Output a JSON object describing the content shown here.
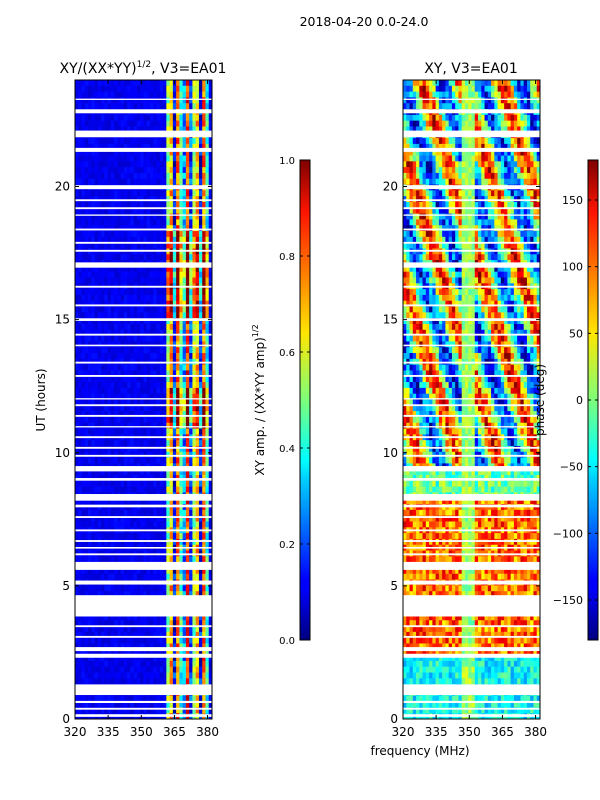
{
  "figure": {
    "suptitle": "2018-04-20 0.0-24.0",
    "shared_xlabel": "frequency (MHz)"
  },
  "chart_data": [
    {
      "type": "heatmap",
      "id": "left",
      "title_main": "XY/(XX*YY)",
      "title_sup": "1/2",
      "title_tail": ", V3=EA01",
      "ylabel": "UT (hours)",
      "xlabel": "",
      "xlim": [
        320,
        382
      ],
      "ylim": [
        0,
        24
      ],
      "xticks": [
        320,
        335,
        350,
        365,
        380
      ],
      "yticks": [
        0,
        5,
        10,
        15,
        20
      ],
      "colorbar": {
        "label_main": "XY amp. / (XX*YY amp)",
        "label_sup": "1/2",
        "vmin": 0.0,
        "vmax": 1.0,
        "ticks": [
          "0.0",
          "0.2",
          "0.4",
          "0.6",
          "0.8",
          "1.0"
        ],
        "tick_values": [
          0.0,
          0.2,
          0.4,
          0.6,
          0.8,
          1.0
        ],
        "colormap": "jet"
      },
      "gaps_hours": [
        [
          0.08,
          0.18
        ],
        [
          0.35,
          0.42
        ],
        [
          0.6,
          0.68
        ],
        [
          0.9,
          1.3
        ],
        [
          2.3,
          2.45
        ],
        [
          2.55,
          2.7
        ],
        [
          3.05,
          3.12
        ],
        [
          3.45,
          3.52
        ],
        [
          3.85,
          4.65
        ],
        [
          5.05,
          5.2
        ],
        [
          5.6,
          5.9
        ],
        [
          6.15,
          6.22
        ],
        [
          6.4,
          6.46
        ],
        [
          6.65,
          6.72
        ],
        [
          7.05,
          7.12
        ],
        [
          7.55,
          7.62
        ],
        [
          7.95,
          8.05
        ],
        [
          8.2,
          8.45
        ],
        [
          8.95,
          9.05
        ],
        [
          9.3,
          9.5
        ],
        [
          9.85,
          9.92
        ],
        [
          10.15,
          10.22
        ],
        [
          10.55,
          10.62
        ],
        [
          10.95,
          11.0
        ],
        [
          11.35,
          11.42
        ],
        [
          11.75,
          11.82
        ],
        [
          12.0,
          12.05
        ],
        [
          12.85,
          12.92
        ],
        [
          13.35,
          13.42
        ],
        [
          14.0,
          14.06
        ],
        [
          14.4,
          14.47
        ],
        [
          14.95,
          15.05
        ],
        [
          15.5,
          15.57
        ],
        [
          16.2,
          16.27
        ],
        [
          16.95,
          17.15
        ],
        [
          17.55,
          17.62
        ],
        [
          17.85,
          17.92
        ],
        [
          18.35,
          18.42
        ],
        [
          18.9,
          18.95
        ],
        [
          19.15,
          19.22
        ],
        [
          19.45,
          19.52
        ],
        [
          19.9,
          20.05
        ],
        [
          21.3,
          21.45
        ],
        [
          21.85,
          22.1
        ],
        [
          22.75,
          22.9
        ],
        [
          23.25,
          23.3
        ]
      ]
    },
    {
      "type": "heatmap",
      "id": "right",
      "title": "XY, V3=EA01",
      "ylabel": "",
      "xlabel": "",
      "xlim": [
        320,
        382
      ],
      "ylim": [
        0,
        24
      ],
      "xticks": [
        320,
        335,
        350,
        365,
        380
      ],
      "yticks": [
        0,
        5,
        10,
        15,
        20
      ],
      "colorbar": {
        "label": "phase (deg)",
        "vmin": -180,
        "vmax": 180,
        "ticks": [
          "−150",
          "−100",
          "−50",
          "0",
          "50",
          "100",
          "150"
        ],
        "tick_values": [
          -150,
          -100,
          -50,
          0,
          50,
          100,
          150
        ],
        "colormap": "jet"
      },
      "gaps_hours": [
        [
          0.08,
          0.18
        ],
        [
          0.35,
          0.42
        ],
        [
          0.6,
          0.68
        ],
        [
          0.9,
          1.3
        ],
        [
          2.3,
          2.45
        ],
        [
          2.55,
          2.7
        ],
        [
          3.05,
          3.12
        ],
        [
          3.45,
          3.52
        ],
        [
          3.85,
          4.65
        ],
        [
          5.05,
          5.2
        ],
        [
          5.6,
          5.9
        ],
        [
          6.15,
          6.22
        ],
        [
          6.4,
          6.46
        ],
        [
          6.65,
          6.72
        ],
        [
          7.05,
          7.12
        ],
        [
          7.55,
          7.62
        ],
        [
          7.95,
          8.05
        ],
        [
          8.2,
          8.45
        ],
        [
          8.95,
          9.05
        ],
        [
          9.3,
          9.5
        ],
        [
          9.85,
          9.92
        ],
        [
          10.15,
          10.22
        ],
        [
          10.55,
          10.62
        ],
        [
          10.95,
          11.0
        ],
        [
          11.35,
          11.42
        ],
        [
          11.75,
          11.82
        ],
        [
          12.0,
          12.05
        ],
        [
          12.85,
          12.92
        ],
        [
          13.35,
          13.42
        ],
        [
          14.0,
          14.06
        ],
        [
          14.4,
          14.47
        ],
        [
          14.95,
          15.05
        ],
        [
          15.5,
          15.57
        ],
        [
          16.2,
          16.27
        ],
        [
          16.95,
          17.15
        ],
        [
          17.55,
          17.62
        ],
        [
          17.85,
          17.92
        ],
        [
          18.35,
          18.42
        ],
        [
          18.9,
          18.95
        ],
        [
          19.15,
          19.22
        ],
        [
          19.45,
          19.52
        ],
        [
          19.9,
          20.05
        ],
        [
          21.3,
          21.45
        ],
        [
          21.85,
          22.1
        ],
        [
          22.75,
          22.9
        ],
        [
          23.25,
          23.3
        ]
      ]
    }
  ]
}
